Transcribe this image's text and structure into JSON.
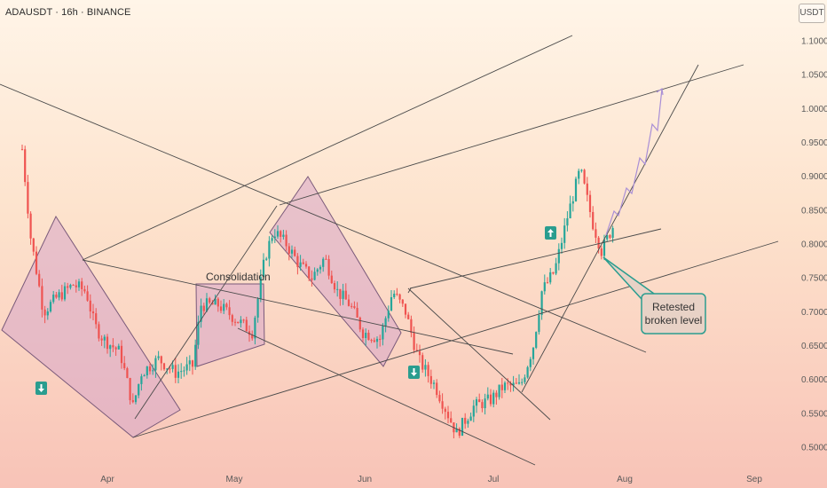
{
  "header": {
    "title": "ADAUSDT · 16h · BINANCE",
    "unit": "USDT"
  },
  "chart_data": {
    "type": "candlestick",
    "symbol": "ADAUSDT",
    "timeframe": "16h",
    "exchange": "BINANCE",
    "y_axis": {
      "unit": "USDT",
      "ticks": [
        "1.1000",
        "1.0500",
        "1.0000",
        "0.9500",
        "0.9000",
        "0.8500",
        "0.8000",
        "0.7500",
        "0.7000",
        "0.6500",
        "0.6000",
        "0.5500",
        "0.5000"
      ],
      "range": [
        0.47,
        1.13
      ]
    },
    "x_axis": {
      "ticks": [
        "Apr",
        "May",
        "Jun",
        "Jul",
        "Aug",
        "Sep"
      ]
    },
    "price_path": [
      [
        "2025-03-12",
        0.94
      ],
      [
        "2025-03-14",
        0.81
      ],
      [
        "2025-03-17",
        0.7
      ],
      [
        "2025-03-20",
        0.72
      ],
      [
        "2025-03-24",
        0.74
      ],
      [
        "2025-03-27",
        0.73
      ],
      [
        "2025-03-29",
        0.68
      ],
      [
        "2025-03-31",
        0.66
      ],
      [
        "2025-04-04",
        0.64
      ],
      [
        "2025-04-07",
        0.56
      ],
      [
        "2025-04-09",
        0.61
      ],
      [
        "2025-04-13",
        0.63
      ],
      [
        "2025-04-17",
        0.61
      ],
      [
        "2025-04-21",
        0.62
      ],
      [
        "2025-04-23",
        0.71
      ],
      [
        "2025-04-27",
        0.71
      ],
      [
        "2025-05-01",
        0.69
      ],
      [
        "2025-05-05",
        0.67
      ],
      [
        "2025-05-08",
        0.78
      ],
      [
        "2025-05-10",
        0.82
      ],
      [
        "2025-05-13",
        0.8
      ],
      [
        "2025-05-16",
        0.77
      ],
      [
        "2025-05-19",
        0.75
      ],
      [
        "2025-05-22",
        0.78
      ],
      [
        "2025-05-25",
        0.73
      ],
      [
        "2025-05-28",
        0.71
      ],
      [
        "2025-05-31",
        0.67
      ],
      [
        "2025-06-04",
        0.66
      ],
      [
        "2025-06-07",
        0.73
      ],
      [
        "2025-06-10",
        0.7
      ],
      [
        "2025-06-13",
        0.63
      ],
      [
        "2025-06-17",
        0.59
      ],
      [
        "2025-06-22",
        0.52
      ],
      [
        "2025-06-26",
        0.56
      ],
      [
        "2025-06-30",
        0.57
      ],
      [
        "2025-07-03",
        0.59
      ],
      [
        "2025-07-07",
        0.59
      ],
      [
        "2025-07-10",
        0.65
      ],
      [
        "2025-07-12",
        0.73
      ],
      [
        "2025-07-15",
        0.76
      ],
      [
        "2025-07-18",
        0.84
      ],
      [
        "2025-07-21",
        0.91
      ],
      [
        "2025-07-24",
        0.83
      ],
      [
        "2025-07-26",
        0.79
      ],
      [
        "2025-07-29",
        0.83
      ]
    ],
    "annotations": [
      {
        "text": "Consolidation"
      },
      {
        "text": "Retested broken level"
      }
    ],
    "colors": {
      "up": "#26a69a",
      "down": "#ef5350",
      "trendline": "#4a4a4a",
      "channel_fill": "#d7a6c8",
      "channel_stroke": "#7a5a7a",
      "projection": "#a98fd6",
      "signal": "#2a9d8f",
      "callout_bg": "#e8d2c6"
    }
  }
}
